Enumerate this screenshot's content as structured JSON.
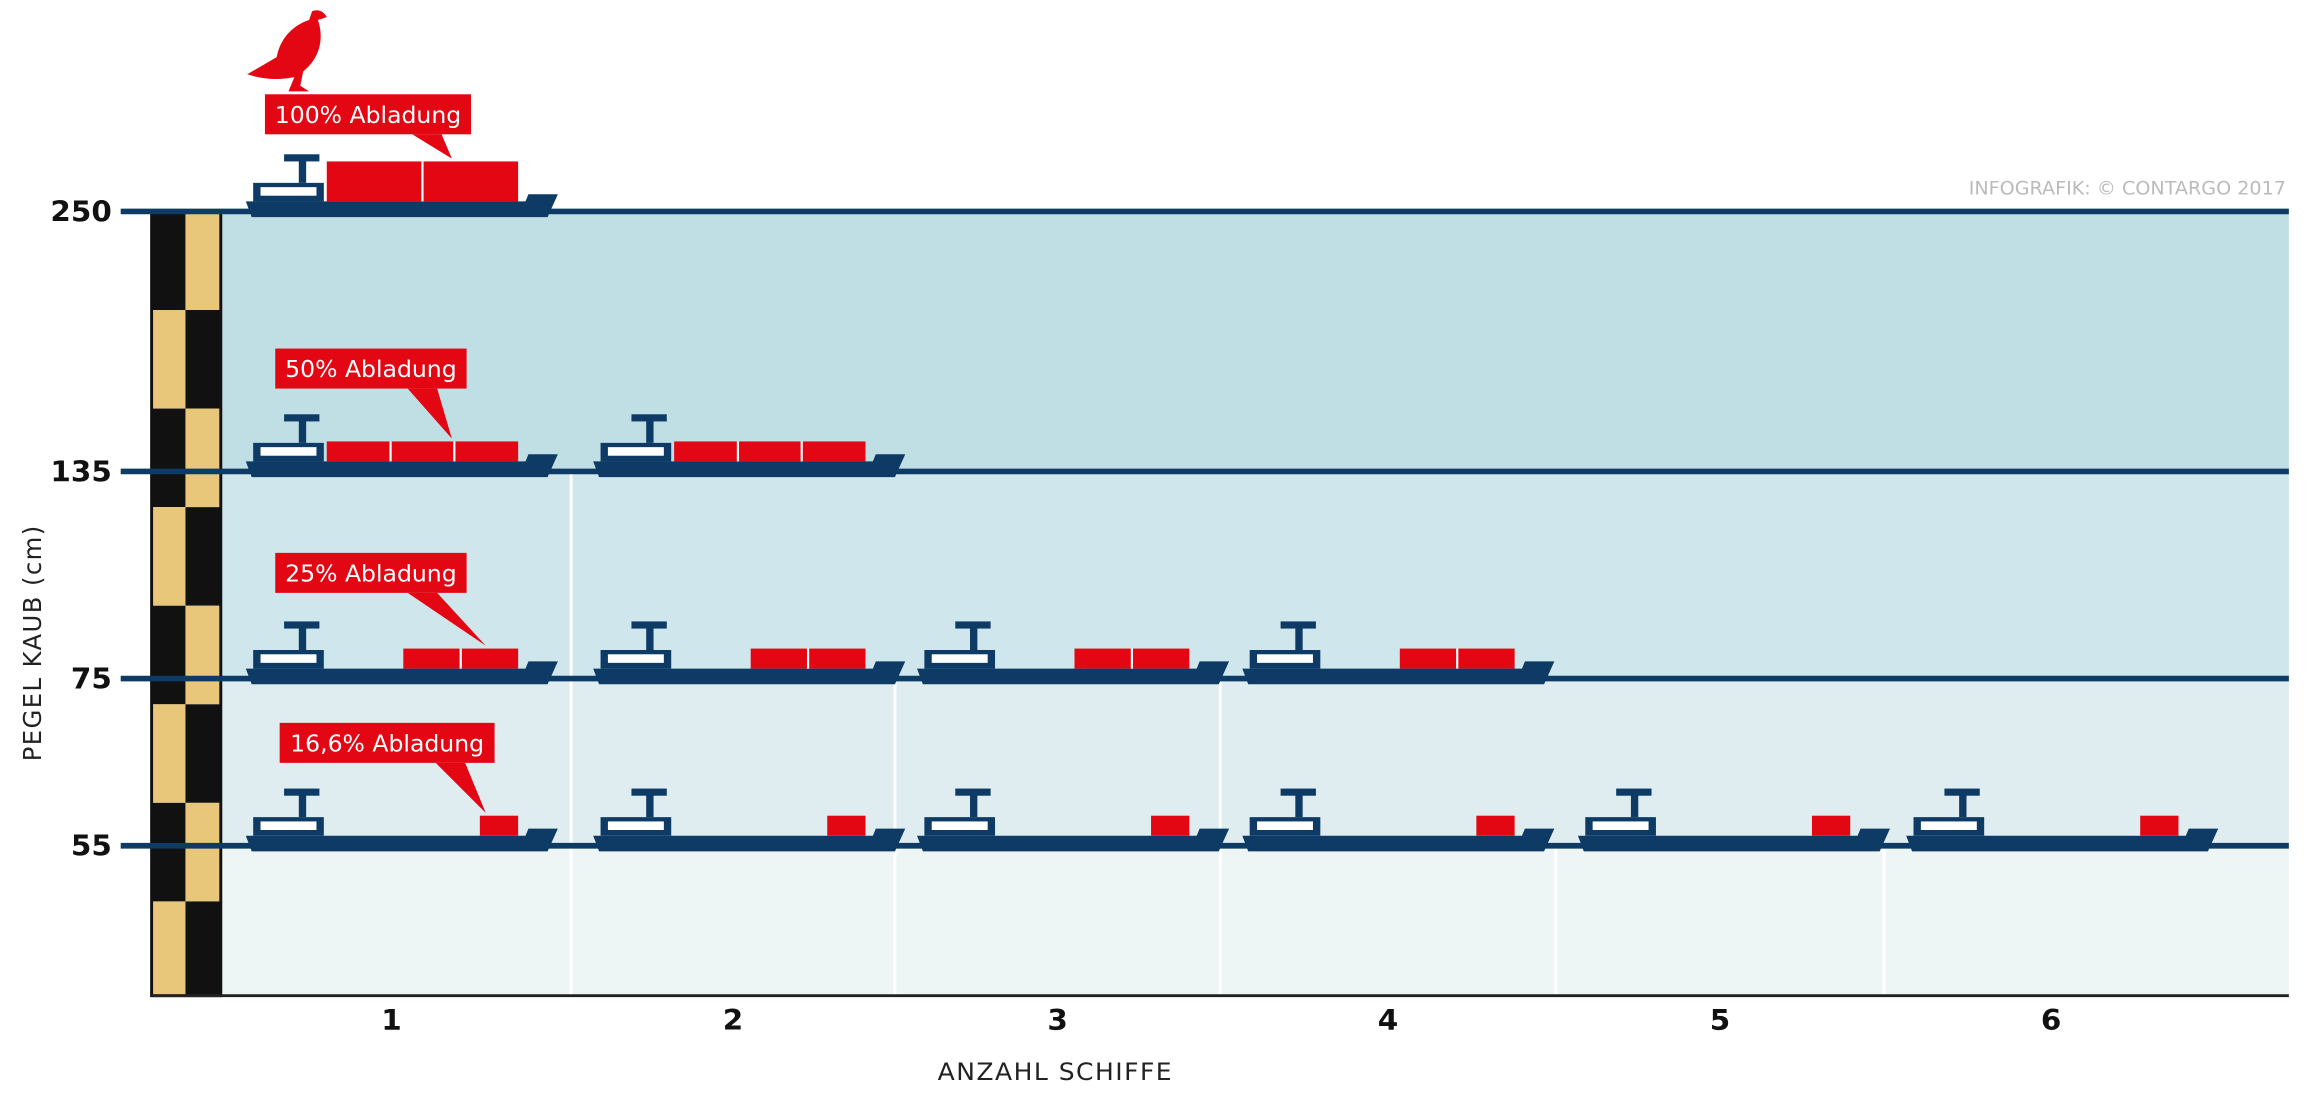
{
  "chart_data": {
    "type": "ship-levels",
    "y_label": "PEGEL KAUB (cm)",
    "x_label": "ANZAHL SCHIFFE",
    "credit": "INFOGRAFIK: © CONTARGO 2017",
    "yticks": [
      250,
      135,
      75,
      55
    ],
    "categories": [
      1,
      2,
      3,
      4,
      5,
      6
    ],
    "ships": [
      1,
      2,
      4,
      6
    ],
    "load_labels": [
      "100% Abladung",
      "50% Abladung",
      "25% Abladung",
      "16,6% Abladung"
    ],
    "colors": {
      "hull": "#0d3b66",
      "cargo": "#e30613",
      "gauge_light": "#e8c77a",
      "gauge_dark": "#111111",
      "bands": [
        "#c0dfe4",
        "#cfe6ec",
        "#dfedf1",
        "#eef6f5"
      ]
    }
  }
}
